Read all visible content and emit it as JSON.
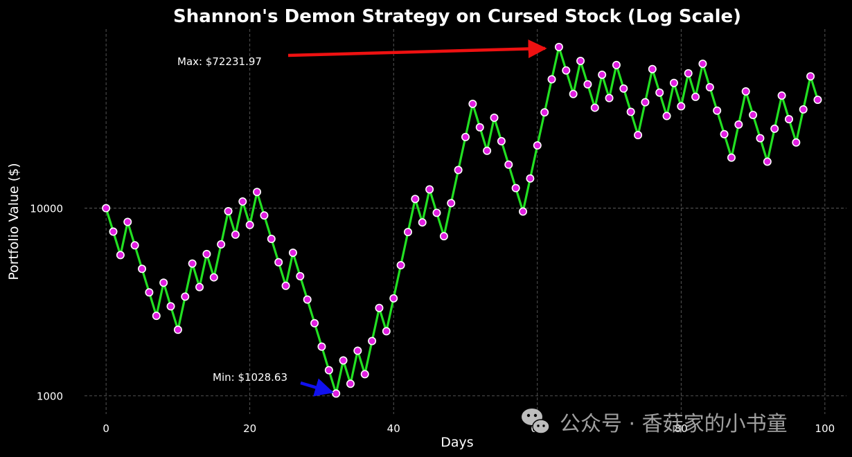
{
  "chart_data": {
    "type": "line",
    "title": "Shannon's Demon Strategy on Cursed Stock (Log Scale)",
    "xlabel": "Days",
    "ylabel": "Portfolio Value ($)",
    "xlim": [
      -3,
      103
    ],
    "ylim": [
      800,
      90000
    ],
    "yscale": "log",
    "grid": true,
    "x_ticks": [
      0,
      20,
      40,
      60,
      80,
      100
    ],
    "x_tick_labels": [
      "0",
      "20",
      "40",
      "60",
      "80",
      "100"
    ],
    "y_ticks": [
      1000,
      10000
    ],
    "y_tick_labels": [
      "1000",
      "10000"
    ],
    "line_color": "#22e022",
    "marker_color": "#e01ee0",
    "marker_edge_color": "#ffffff",
    "series": [
      {
        "x": [
          0,
          1,
          2,
          3,
          4,
          5,
          6,
          7,
          8,
          9,
          10,
          11,
          12,
          13,
          14,
          15,
          16,
          17,
          18,
          19,
          20,
          21,
          22,
          23,
          24,
          25,
          26,
          27,
          28,
          29,
          30,
          31,
          32,
          33,
          34,
          35,
          36,
          37,
          38,
          39,
          40,
          41,
          42,
          43,
          44,
          45,
          46,
          47,
          48,
          49,
          50,
          51,
          52,
          53,
          54,
          55,
          56,
          57,
          58,
          59,
          60,
          61,
          62,
          63,
          64,
          65,
          66,
          67,
          68,
          69,
          70,
          71,
          72,
          73,
          74,
          75,
          76,
          77,
          78,
          79,
          80,
          81,
          82,
          83,
          84,
          85,
          86,
          87,
          88,
          89,
          90,
          91,
          92,
          93,
          94,
          95,
          96,
          97,
          98,
          99
        ],
        "values": [
          10000,
          7500,
          5625,
          8450,
          6340,
          4750,
          3560,
          2670,
          4010,
          3000,
          2250,
          3380,
          5070,
          3800,
          5700,
          4280,
          6420,
          9640,
          7230,
          10850,
          8140,
          12200,
          9150,
          6860,
          5150,
          3860,
          5790,
          4340,
          3260,
          2440,
          1830,
          1370,
          1028.63,
          1545,
          1160,
          1740,
          1305,
          1960,
          2940,
          2210,
          3310,
          4970,
          7460,
          11200,
          8400,
          12600,
          9450,
          7090,
          10640,
          15970,
          23950,
          35950,
          26960,
          20220,
          30330,
          22750,
          17060,
          12800,
          9600,
          14400,
          21600,
          32400,
          48600,
          72231.97,
          54200,
          40600,
          60900,
          45700,
          34300,
          51400,
          38600,
          57900,
          43400,
          32600,
          24500,
          36700,
          55100,
          41300,
          31000,
          46500,
          34900,
          52300,
          39200,
          58800,
          44100,
          33100,
          24800,
          18600,
          27900,
          41900,
          31400,
          23600,
          17700,
          26500,
          39800,
          29800,
          22400,
          33600,
          50400,
          37800
        ]
      }
    ],
    "annotations": [
      {
        "text": "Max: $72231.97",
        "point": {
          "x": 63,
          "y": 72231.97
        },
        "arrow_color": "#ee1111"
      },
      {
        "text": "Min: $1028.63",
        "point": {
          "x": 32,
          "y": 1028.63
        },
        "arrow_color": "#1111ee"
      }
    ]
  },
  "watermark": {
    "icon": "wechat-icon",
    "text": "公众号 · 香菇家的小书童"
  }
}
